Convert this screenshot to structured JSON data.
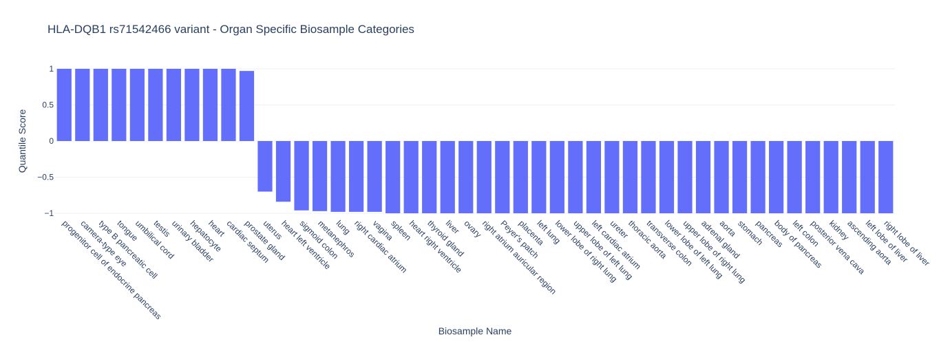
{
  "chart_data": {
    "type": "bar",
    "title": "HLA-DQB1 rs71542466 variant - Organ Specific Biosample Categories",
    "xlabel": "Biosample Name",
    "ylabel": "Quantile Score",
    "ylim": [
      -1,
      1
    ],
    "yticks": [
      {
        "value": 1,
        "label": "1"
      },
      {
        "value": 0.5,
        "label": "0.5"
      },
      {
        "value": 0,
        "label": "0"
      },
      {
        "value": -0.5,
        "label": "−0.5"
      },
      {
        "value": -1,
        "label": "−1"
      }
    ],
    "grid": true,
    "bar_color": "#636efa",
    "categories": [
      "progenitor cell of endocrine pancreas",
      "camera-type eye",
      "type B pancreatic cell",
      "tongue",
      "umbilical cord",
      "testis",
      "urinary bladder",
      "hepatocyte",
      "heart",
      "cardiac septum",
      "prostate gland",
      "uterus",
      "heart left ventricle",
      "sigmoid colon",
      "metanephros",
      "lung",
      "right cardiac atrium",
      "vagina",
      "spleen",
      "heart right ventricle",
      "thyroid gland",
      "liver",
      "ovary",
      "right atrium auricular region",
      "Peyer's patch",
      "placenta",
      "left lung",
      "lower lobe of right lung",
      "upper lobe of left lung",
      "left cardiac atrium",
      "ureter",
      "thoracic aorta",
      "transverse colon",
      "lower lobe of left lung",
      "upper lobe of right lung",
      "adrenal gland",
      "aorta",
      "stomach",
      "pancreas",
      "body of pancreas",
      "left colon",
      "posterior vena cava",
      "kidney",
      "ascending aorta",
      "left lobe of liver",
      "right lobe of liver"
    ],
    "values": [
      1,
      1,
      1,
      1,
      1,
      1,
      1,
      1,
      1,
      1,
      0.97,
      -0.7,
      -0.84,
      -0.96,
      -0.97,
      -0.98,
      -0.98,
      -0.98,
      -1,
      -1,
      -1,
      -1,
      -1,
      -1,
      -1,
      -1,
      -1,
      -1,
      -1,
      -1,
      -1,
      -1,
      -1,
      -1,
      -1,
      -1,
      -1,
      -1,
      -1,
      -1,
      -1,
      -1,
      -1,
      -1,
      -1,
      -1
    ]
  }
}
